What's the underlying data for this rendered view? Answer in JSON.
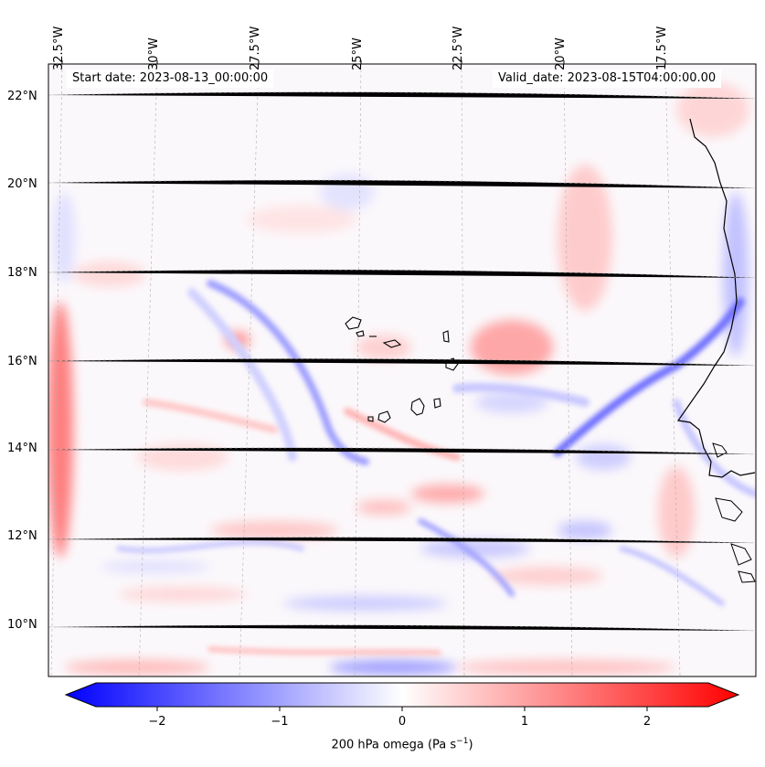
{
  "map": {
    "title_left": "Start date: 2023-08-13_00:00:00",
    "title_right": "Valid_date: 2023-08-15T04:00:00.00",
    "lon_labels": [
      "32.5°W",
      "30°W",
      "27.5°W",
      "25°W",
      "22.5°W",
      "20°W",
      "17.5°W"
    ],
    "lat_labels": [
      "22°N",
      "20°N",
      "18°N",
      "16°N",
      "14°N",
      "12°N",
      "10°N"
    ],
    "field_variable": "200 hPa omega",
    "field_palette": "bwr"
  },
  "colorbar": {
    "label": "200 hPa omega (Pa s",
    "label_exp": "−1",
    "label_close": ")",
    "ticks": [
      "−2",
      "−1",
      "0",
      "1",
      "2"
    ],
    "range": [
      -2.7,
      2.7
    ],
    "colors": {
      "low": "#0000ff",
      "mid": "#ffffff",
      "high": "#ff0000"
    }
  }
}
